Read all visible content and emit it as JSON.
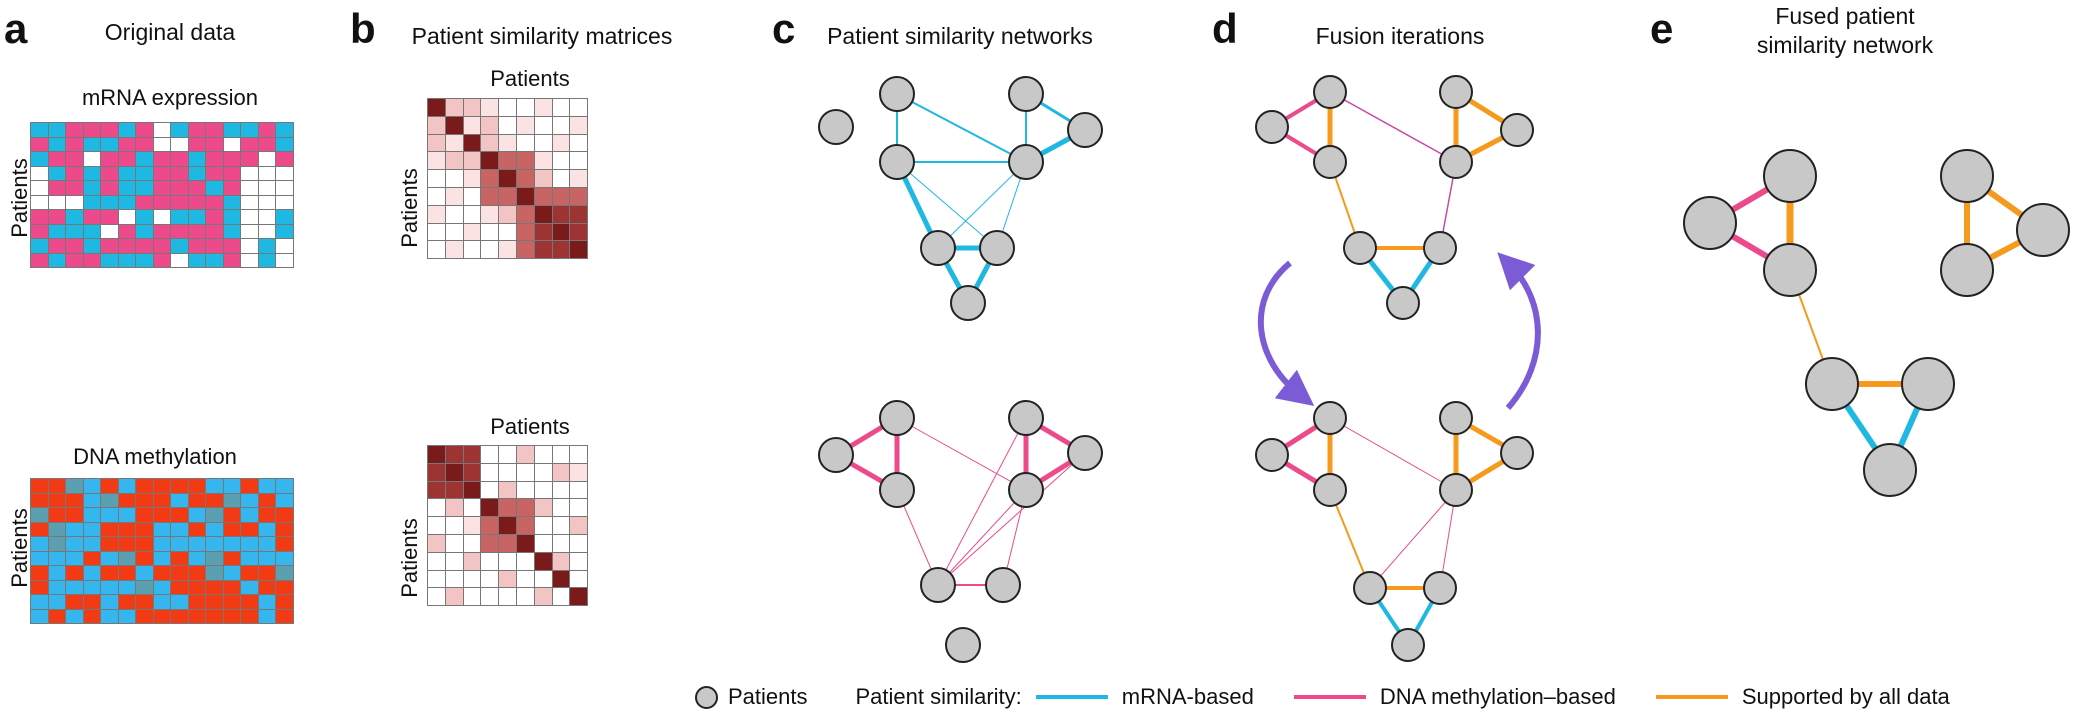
{
  "panels": {
    "a": {
      "letter": "a",
      "title": "Original data",
      "top_subtitle": "mRNA expression",
      "bottom_subtitle": "DNA methylation",
      "row_label": "Patients"
    },
    "b": {
      "letter": "b",
      "title": "Patient similarity matrices",
      "top_col_label": "Patients",
      "bottom_col_label": "Patients",
      "row_label": "Patients"
    },
    "c": {
      "letter": "c",
      "title": "Patient similarity networks"
    },
    "d": {
      "letter": "d",
      "title": "Fusion iterations"
    },
    "e": {
      "letter": "e",
      "title_line1": "Fused patient",
      "title_line2": "similarity network"
    }
  },
  "legend": {
    "patients": "Patients",
    "similarity_label": "Patient similarity:",
    "mrna": "mRNA-based",
    "dna": "DNA methylation–based",
    "all": "Supported by all data"
  },
  "colors": {
    "mrna": "#1fb8e3",
    "dna": "#ec4a8b",
    "all": "#f59a1c",
    "methylation_hot": "#f23a14",
    "methylation_cold": "#35b6ee",
    "methylation_mid": "#5aa0b0",
    "node_fill": "#c8c8c8",
    "arrow": "#7c5bd6"
  }
}
